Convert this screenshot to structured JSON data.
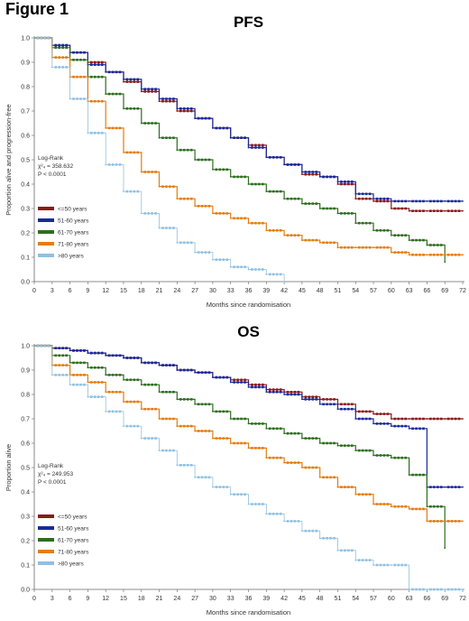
{
  "figure_label": "Figure 1",
  "chart_data": [
    {
      "type": "line",
      "title": "PFS",
      "xlabel": "Months since randomisation",
      "ylabel": "Proportion alive and progression-free",
      "xlim": [
        0,
        72
      ],
      "ylim": [
        0.0,
        1.0
      ],
      "xticks": [
        "0",
        "3",
        "6",
        "9",
        "12",
        "15",
        "18",
        "21",
        "24",
        "27",
        "30",
        "33",
        "36",
        "39",
        "42",
        "45",
        "48",
        "51",
        "54",
        "57",
        "60",
        "63",
        "66",
        "69",
        "72"
      ],
      "yticks": [
        "0.0",
        "0.1",
        "0.2",
        "0.3",
        "0.4",
        "0.5",
        "0.6",
        "0.7",
        "0.8",
        "0.9",
        "1.0"
      ],
      "stat_text": [
        "Log-Rank",
        "χ²₄ = 358.632",
        "P < 0.0001"
      ],
      "series": [
        {
          "name": "<=50 years",
          "color": "#8b1a1a",
          "x": [
            0,
            3,
            6,
            9,
            12,
            15,
            18,
            21,
            24,
            27,
            30,
            33,
            36,
            39,
            42,
            45,
            48,
            51,
            54,
            57,
            60,
            63,
            66,
            69,
            72
          ],
          "y": [
            1.0,
            0.97,
            0.94,
            0.9,
            0.86,
            0.82,
            0.78,
            0.74,
            0.7,
            0.67,
            0.63,
            0.59,
            0.56,
            0.51,
            0.48,
            0.44,
            0.43,
            0.4,
            0.34,
            0.33,
            0.3,
            0.29,
            0.29,
            0.29,
            0.29
          ]
        },
        {
          "name": "51-60 years",
          "color": "#1a2a9c",
          "x": [
            0,
            3,
            6,
            9,
            12,
            15,
            18,
            21,
            24,
            27,
            30,
            33,
            36,
            39,
            42,
            45,
            48,
            51,
            54,
            57,
            60,
            63,
            66,
            69,
            72
          ],
          "y": [
            1.0,
            0.97,
            0.94,
            0.89,
            0.86,
            0.83,
            0.79,
            0.75,
            0.71,
            0.67,
            0.63,
            0.59,
            0.55,
            0.51,
            0.48,
            0.45,
            0.43,
            0.41,
            0.36,
            0.34,
            0.33,
            0.33,
            0.33,
            0.33,
            0.33
          ]
        },
        {
          "name": "61-70 years",
          "color": "#2d6e1e",
          "x": [
            0,
            3,
            6,
            9,
            12,
            15,
            18,
            21,
            24,
            27,
            30,
            33,
            36,
            39,
            42,
            45,
            48,
            51,
            54,
            57,
            60,
            63,
            66,
            69
          ],
          "y": [
            1.0,
            0.96,
            0.91,
            0.84,
            0.77,
            0.71,
            0.65,
            0.59,
            0.54,
            0.5,
            0.46,
            0.43,
            0.4,
            0.37,
            0.34,
            0.32,
            0.3,
            0.28,
            0.24,
            0.21,
            0.19,
            0.17,
            0.15,
            0.08
          ]
        },
        {
          "name": "71-80 years",
          "color": "#e37d12",
          "x": [
            0,
            3,
            6,
            9,
            12,
            15,
            18,
            21,
            24,
            27,
            30,
            33,
            36,
            39,
            42,
            45,
            48,
            51,
            54,
            57,
            60,
            63,
            66,
            69,
            72
          ],
          "y": [
            1.0,
            0.92,
            0.84,
            0.74,
            0.63,
            0.53,
            0.45,
            0.39,
            0.34,
            0.31,
            0.28,
            0.26,
            0.24,
            0.21,
            0.19,
            0.17,
            0.16,
            0.14,
            0.14,
            0.14,
            0.12,
            0.11,
            0.11,
            0.11,
            0.11
          ]
        },
        {
          "name": ">80 years",
          "color": "#8fc0e2",
          "x": [
            0,
            3,
            6,
            9,
            12,
            15,
            18,
            21,
            24,
            27,
            30,
            33,
            36,
            39,
            42
          ],
          "y": [
            1.0,
            0.88,
            0.75,
            0.61,
            0.48,
            0.37,
            0.28,
            0.22,
            0.16,
            0.12,
            0.09,
            0.06,
            0.05,
            0.03,
            0.0
          ]
        }
      ],
      "legend": "left"
    },
    {
      "type": "line",
      "title": "OS",
      "xlabel": "Months since randomisation",
      "ylabel": "Proportion alive",
      "xlim": [
        0,
        72
      ],
      "ylim": [
        0.0,
        1.0
      ],
      "xticks": [
        "0",
        "3",
        "6",
        "9",
        "12",
        "15",
        "18",
        "21",
        "24",
        "27",
        "30",
        "33",
        "36",
        "39",
        "42",
        "45",
        "48",
        "51",
        "54",
        "57",
        "60",
        "63",
        "66",
        "69",
        "72"
      ],
      "yticks": [
        "0.0",
        "0.1",
        "0.2",
        "0.3",
        "0.4",
        "0.5",
        "0.6",
        "0.7",
        "0.8",
        "0.9",
        "1.0"
      ],
      "stat_text": [
        "Log-Rank",
        "χ²₄ = 249.953",
        "P < 0.0001"
      ],
      "series": [
        {
          "name": "<=50 years",
          "color": "#8b1a1a",
          "x": [
            0,
            3,
            6,
            9,
            12,
            15,
            18,
            21,
            24,
            27,
            30,
            33,
            36,
            39,
            42,
            45,
            48,
            51,
            54,
            57,
            60,
            63,
            66,
            69,
            72
          ],
          "y": [
            1.0,
            0.99,
            0.98,
            0.97,
            0.96,
            0.95,
            0.93,
            0.92,
            0.9,
            0.89,
            0.87,
            0.86,
            0.84,
            0.82,
            0.81,
            0.79,
            0.78,
            0.76,
            0.73,
            0.72,
            0.7,
            0.7,
            0.7,
            0.7,
            0.7
          ]
        },
        {
          "name": "51-60 years",
          "color": "#1a2a9c",
          "x": [
            0,
            3,
            6,
            9,
            12,
            15,
            18,
            21,
            24,
            27,
            30,
            33,
            36,
            39,
            42,
            45,
            48,
            51,
            54,
            57,
            60,
            63,
            66,
            69,
            72
          ],
          "y": [
            1.0,
            0.99,
            0.98,
            0.97,
            0.96,
            0.95,
            0.93,
            0.92,
            0.9,
            0.89,
            0.87,
            0.85,
            0.83,
            0.81,
            0.8,
            0.78,
            0.76,
            0.74,
            0.7,
            0.68,
            0.67,
            0.66,
            0.42,
            0.42,
            0.42
          ]
        },
        {
          "name": "61-70 years",
          "color": "#2d6e1e",
          "x": [
            0,
            3,
            6,
            9,
            12,
            15,
            18,
            21,
            24,
            27,
            30,
            33,
            36,
            39,
            42,
            45,
            48,
            51,
            54,
            57,
            60,
            63,
            66,
            69
          ],
          "y": [
            1.0,
            0.96,
            0.93,
            0.91,
            0.88,
            0.86,
            0.84,
            0.81,
            0.78,
            0.76,
            0.73,
            0.7,
            0.68,
            0.66,
            0.64,
            0.62,
            0.6,
            0.59,
            0.57,
            0.55,
            0.54,
            0.47,
            0.34,
            0.17
          ]
        },
        {
          "name": "71-80 years",
          "color": "#e37d12",
          "x": [
            0,
            3,
            6,
            9,
            12,
            15,
            18,
            21,
            24,
            27,
            30,
            33,
            36,
            39,
            42,
            45,
            48,
            51,
            54,
            57,
            60,
            63,
            66,
            69,
            72
          ],
          "y": [
            1.0,
            0.92,
            0.88,
            0.85,
            0.81,
            0.77,
            0.74,
            0.7,
            0.67,
            0.65,
            0.62,
            0.6,
            0.58,
            0.54,
            0.52,
            0.5,
            0.46,
            0.42,
            0.39,
            0.35,
            0.34,
            0.33,
            0.28,
            0.28,
            0.28
          ]
        },
        {
          "name": ">80 years",
          "color": "#8fc0e2",
          "x": [
            0,
            3,
            6,
            9,
            12,
            15,
            18,
            21,
            24,
            27,
            30,
            33,
            36,
            39,
            42,
            45,
            48,
            51,
            54,
            57,
            60,
            63,
            66,
            69,
            72
          ],
          "y": [
            1.0,
            0.88,
            0.84,
            0.79,
            0.73,
            0.67,
            0.62,
            0.57,
            0.51,
            0.46,
            0.42,
            0.39,
            0.35,
            0.31,
            0.28,
            0.24,
            0.21,
            0.16,
            0.12,
            0.1,
            0.1,
            0.0,
            0.0,
            0.0,
            0.0
          ]
        }
      ],
      "legend": "left"
    }
  ]
}
